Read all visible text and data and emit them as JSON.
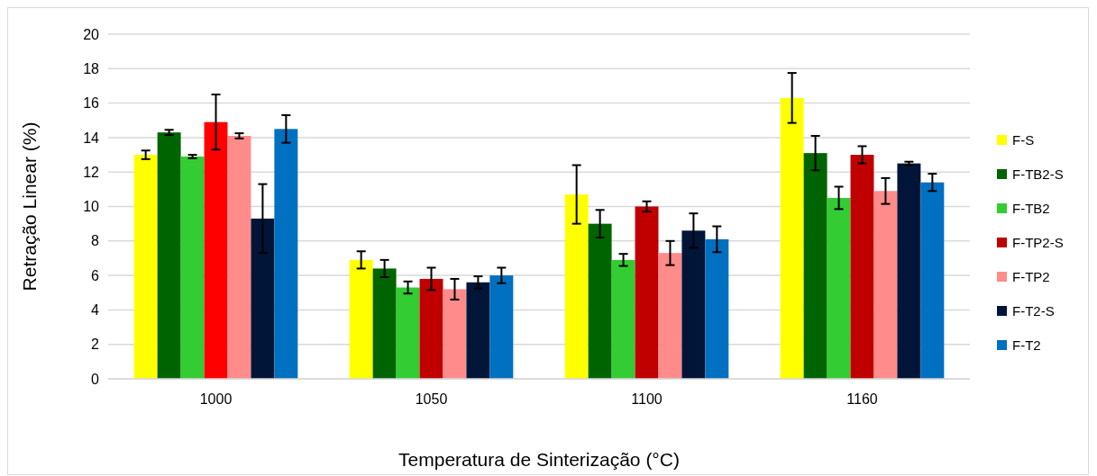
{
  "chart_data": {
    "type": "bar",
    "xlabel": "Temperatura de Sinterização (°C)",
    "ylabel": "Retração Linear (%)",
    "categories": [
      "1000",
      "1050",
      "1100",
      "1160"
    ],
    "series": [
      {
        "name": "F-S",
        "color": "#ffff00",
        "values": [
          13.0,
          6.9,
          10.7,
          16.3
        ],
        "errors": [
          0.25,
          0.5,
          1.7,
          1.45
        ]
      },
      {
        "name": "F-TB2-S",
        "color": "#006400",
        "values": [
          14.3,
          6.4,
          9.0,
          13.1
        ],
        "errors": [
          0.15,
          0.5,
          0.8,
          1.0
        ]
      },
      {
        "name": "F-TB2",
        "color": "#33cc33",
        "values": [
          12.9,
          5.3,
          6.9,
          10.5
        ],
        "errors": [
          0.1,
          0.35,
          0.35,
          0.65
        ]
      },
      {
        "name": "F-TP2-S",
        "color": "#c00000",
        "colors": [
          "#ff0000",
          "#c00000",
          "#c00000",
          "#c00000"
        ],
        "values": [
          14.9,
          5.8,
          10.0,
          13.0
        ],
        "errors": [
          1.6,
          0.65,
          0.3,
          0.5
        ]
      },
      {
        "name": "F-TP2",
        "color": "#ff8b8b",
        "values": [
          14.1,
          5.2,
          7.3,
          10.9
        ],
        "errors": [
          0.15,
          0.6,
          0.7,
          0.75
        ]
      },
      {
        "name": "F-T2-S",
        "color": "#001538",
        "values": [
          9.3,
          5.6,
          8.6,
          12.5
        ],
        "errors": [
          2.0,
          0.35,
          1.0,
          0.1
        ]
      },
      {
        "name": "F-T2",
        "color": "#0070c0",
        "values": [
          14.5,
          6.0,
          8.1,
          11.4
        ],
        "errors": [
          0.8,
          0.45,
          0.75,
          0.5
        ]
      }
    ],
    "ylim": [
      0,
      20
    ],
    "yticks": [
      0,
      2,
      4,
      6,
      8,
      10,
      12,
      14,
      16,
      18,
      20
    ],
    "grid": "y",
    "legend": "right"
  }
}
